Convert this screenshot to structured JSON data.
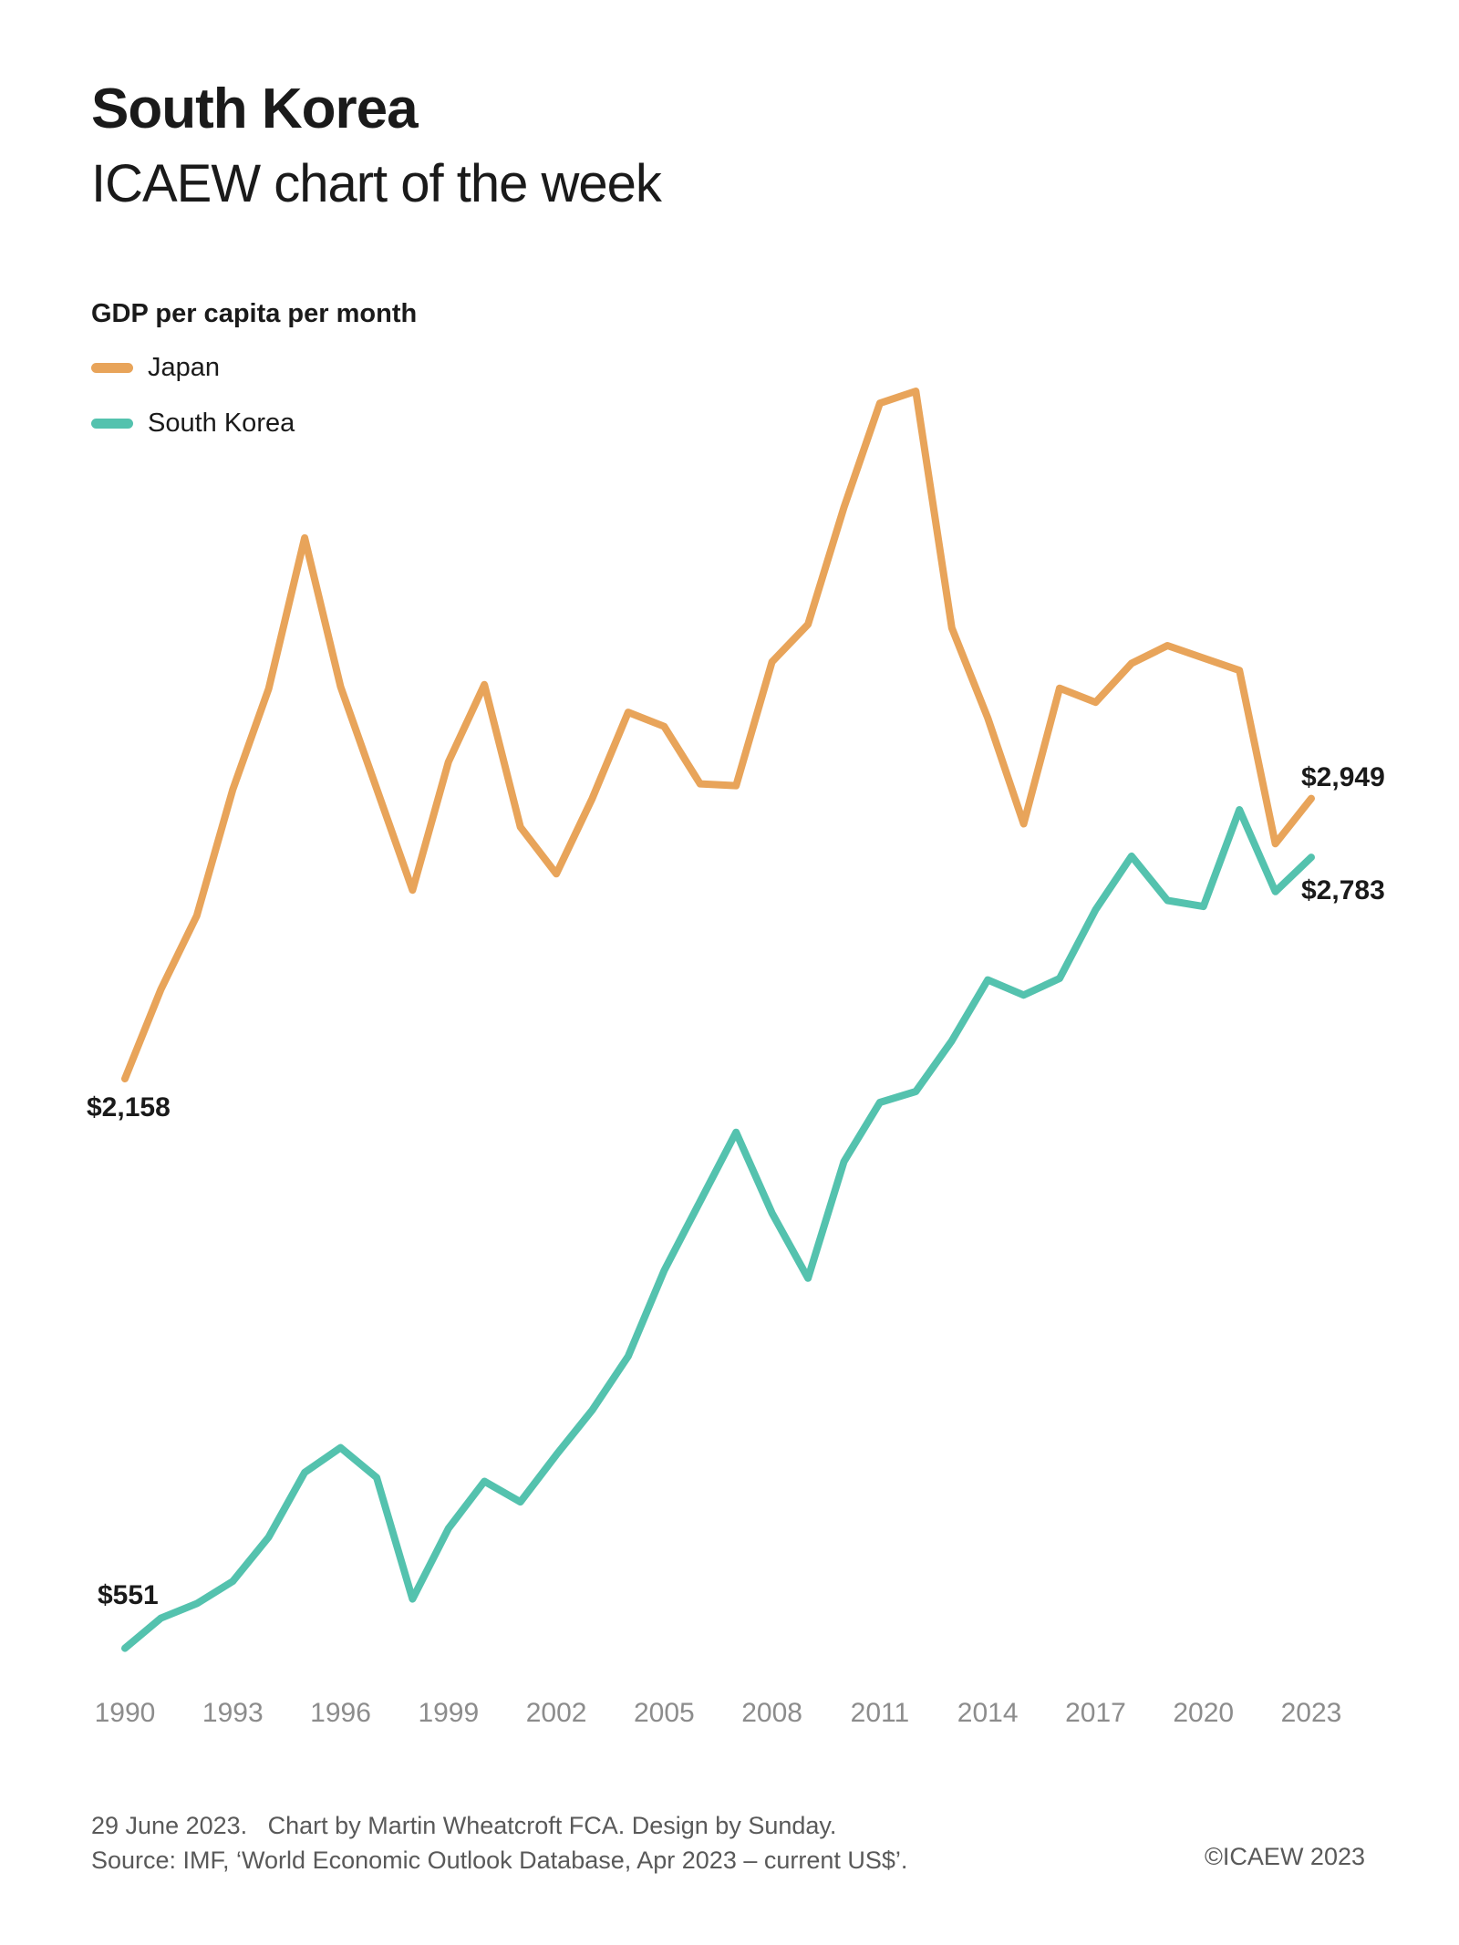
{
  "header": {
    "title": "South Korea",
    "subtitle": "ICAEW chart of the week"
  },
  "legend": {
    "heading": "GDP per capita per month",
    "items": [
      {
        "label": "Japan",
        "color": "#E8A45A"
      },
      {
        "label": "South Korea",
        "color": "#54C2AE"
      }
    ]
  },
  "chart_data": {
    "type": "line",
    "title": "GDP per capita per month",
    "xlabel": "",
    "ylabel": "GDP per capita per month (current US$)",
    "grid": false,
    "legend_position": "top-left",
    "x": [
      1990,
      1991,
      1992,
      1993,
      1994,
      1995,
      1996,
      1997,
      1998,
      1999,
      2000,
      2001,
      2002,
      2003,
      2004,
      2005,
      2006,
      2007,
      2008,
      2009,
      2010,
      2011,
      2012,
      2013,
      2014,
      2015,
      2016,
      2017,
      2018,
      2019,
      2020,
      2021,
      2022,
      2023
    ],
    "x_ticks": [
      1990,
      1993,
      1996,
      1999,
      2002,
      2005,
      2008,
      2011,
      2014,
      2017,
      2020,
      2023
    ],
    "ylim": [
      430,
      4200
    ],
    "series": [
      {
        "name": "Japan",
        "color": "#E8A45A",
        "values": [
          2158,
          2410,
          2618,
          2974,
          3259,
          3684,
          3264,
          2977,
          2690,
          3052,
          3270,
          2868,
          2736,
          2949,
          3192,
          3152,
          2990,
          2985,
          3334,
          3440,
          3770,
          4064,
          4098,
          3430,
          3176,
          2877,
          3260,
          3220,
          3330,
          3380,
          3345,
          3310,
          2821,
          2949
        ]
      },
      {
        "name": "South Korea",
        "color": "#54C2AE",
        "values": [
          551,
          636,
          677,
          740,
          865,
          1047,
          1117,
          1033,
          690,
          889,
          1022,
          964,
          1097,
          1223,
          1375,
          1617,
          1812,
          2007,
          1779,
          1595,
          1924,
          2091,
          2122,
          2265,
          2437,
          2394,
          2441,
          2635,
          2786,
          2661,
          2644,
          2917,
          2686,
          2783
        ]
      }
    ],
    "annotations": [
      {
        "text": "$2,158",
        "series": "Japan",
        "year": 1990,
        "value": 2158
      },
      {
        "text": "$551",
        "series": "South Korea",
        "year": 1990,
        "value": 551
      },
      {
        "text": "$2,949",
        "series": "Japan",
        "year": 2023,
        "value": 2949
      },
      {
        "text": "$2,783",
        "series": "South Korea",
        "year": 2023,
        "value": 2783
      }
    ]
  },
  "footer": {
    "line1": "29 June 2023.   Chart by Martin Wheatcroft FCA. Design by Sunday.",
    "line2": "Source: IMF, ‘World Economic Outlook Database, Apr 2023 – current US$’.",
    "copyright": "©ICAEW 2023"
  }
}
